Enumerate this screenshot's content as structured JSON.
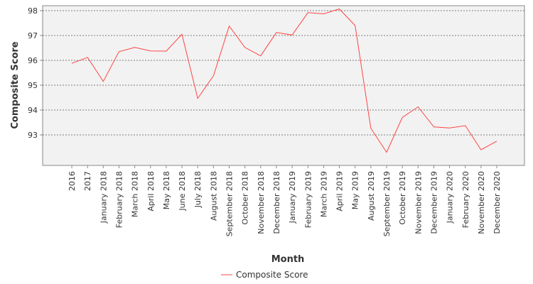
{
  "chart_data": {
    "type": "line",
    "title": "",
    "xlabel": "Month",
    "ylabel": "Composite Score",
    "ylim": [
      92.0,
      98.0
    ],
    "yticks": [
      93,
      94,
      95,
      96,
      97,
      98
    ],
    "grid": "horizontal dashed",
    "legend_position": "bottom-center",
    "categories": [
      "2016",
      "2017",
      "January 2018",
      "February 2018",
      "March 2018",
      "April 2018",
      "May 2018",
      "June 2018",
      "July 2018",
      "August 2018",
      "September 2018",
      "October 2018",
      "November 2018",
      "December 2018",
      "January 2019",
      "February 2019",
      "March 2019",
      "April 2019",
      "May 2019",
      "August 2019",
      "September 2019",
      "October 2019",
      "November 2019",
      "December 2019",
      "January 2020",
      "February 2020",
      "November 2020",
      "December 2020"
    ],
    "series": [
      {
        "name": "Composite Score",
        "color": "#ff4444",
        "values": [
          95.88,
          96.12,
          95.15,
          96.35,
          96.52,
          96.38,
          96.37,
          97.05,
          94.47,
          95.38,
          97.38,
          96.52,
          96.18,
          97.12,
          97.02,
          97.92,
          97.87,
          98.07,
          97.4,
          93.27,
          92.3,
          93.7,
          94.13,
          93.32,
          93.28,
          93.37,
          92.4,
          92.75
        ]
      }
    ]
  }
}
